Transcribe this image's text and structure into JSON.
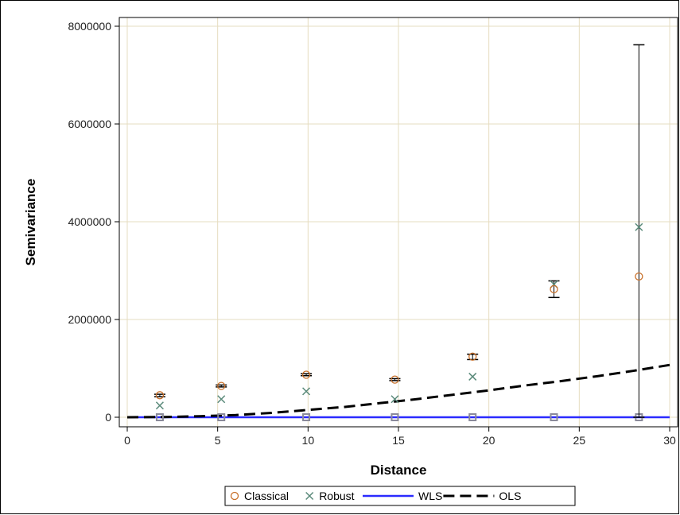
{
  "chart_data": {
    "type": "scatter",
    "title": "",
    "xlabel": "Distance",
    "ylabel": "Semivariance",
    "xlim": [
      0,
      30
    ],
    "ylim": [
      0,
      8000000
    ],
    "xticks": [
      0,
      5,
      10,
      15,
      20,
      25,
      30
    ],
    "yticks": [
      0,
      2000000,
      4000000,
      6000000,
      8000000
    ],
    "grid": true,
    "legend_position": "bottom",
    "colors": {
      "classical": "#c8702a",
      "robust": "#5a8a7a",
      "wls": "#2b2bff",
      "ols": "#000000",
      "grid": "#e6dcc0",
      "errorbar": "#000000",
      "square_marker": "#8a8a9a"
    },
    "series": [
      {
        "name": "Classical",
        "kind": "scatter",
        "marker": "circle",
        "points": [
          {
            "x": 1.8,
            "y": 450000,
            "err_low": 420000,
            "err_high": 470000
          },
          {
            "x": 5.2,
            "y": 640000,
            "err_low": 620000,
            "err_high": 660000
          },
          {
            "x": 9.9,
            "y": 870000,
            "err_low": 850000,
            "err_high": 890000
          },
          {
            "x": 14.8,
            "y": 770000,
            "err_low": 750000,
            "err_high": 790000
          },
          {
            "x": 19.1,
            "y": 1240000,
            "err_low": 1180000,
            "err_high": 1290000
          },
          {
            "x": 23.6,
            "y": 2620000,
            "err_low": 2450000,
            "err_high": 2790000
          },
          {
            "x": 28.3,
            "y": 2880000,
            "err_low": 0,
            "err_high": 7620000
          }
        ]
      },
      {
        "name": "Robust",
        "kind": "scatter",
        "marker": "x",
        "points": [
          {
            "x": 1.8,
            "y": 240000
          },
          {
            "x": 5.2,
            "y": 370000
          },
          {
            "x": 9.9,
            "y": 530000
          },
          {
            "x": 14.8,
            "y": 370000
          },
          {
            "x": 19.1,
            "y": 830000
          },
          {
            "x": 23.6,
            "y": 2720000
          },
          {
            "x": 28.3,
            "y": 3890000
          }
        ]
      },
      {
        "name": "WLS",
        "kind": "line",
        "style": "solid",
        "x": [
          0,
          30
        ],
        "y": [
          0,
          0
        ]
      },
      {
        "name": "OLS",
        "kind": "line",
        "style": "dashed",
        "x": [
          0,
          2,
          4,
          6,
          8,
          10,
          12,
          14,
          16,
          18,
          20,
          22,
          24,
          26,
          28,
          30
        ],
        "y": [
          0,
          5000,
          20000,
          45000,
          90000,
          150000,
          210000,
          290000,
          370000,
          460000,
          550000,
          650000,
          740000,
          840000,
          950000,
          1070000
        ]
      }
    ],
    "zero_markers_x": [
      1.8,
      5.2,
      9.9,
      14.8,
      19.1,
      23.6,
      28.3
    ]
  },
  "legend": {
    "items": [
      {
        "label": "Classical",
        "symbol": "circle"
      },
      {
        "label": "Robust",
        "symbol": "x"
      },
      {
        "label": "WLS",
        "symbol": "solid-line"
      },
      {
        "label": "OLS",
        "symbol": "dashed-line"
      }
    ]
  }
}
